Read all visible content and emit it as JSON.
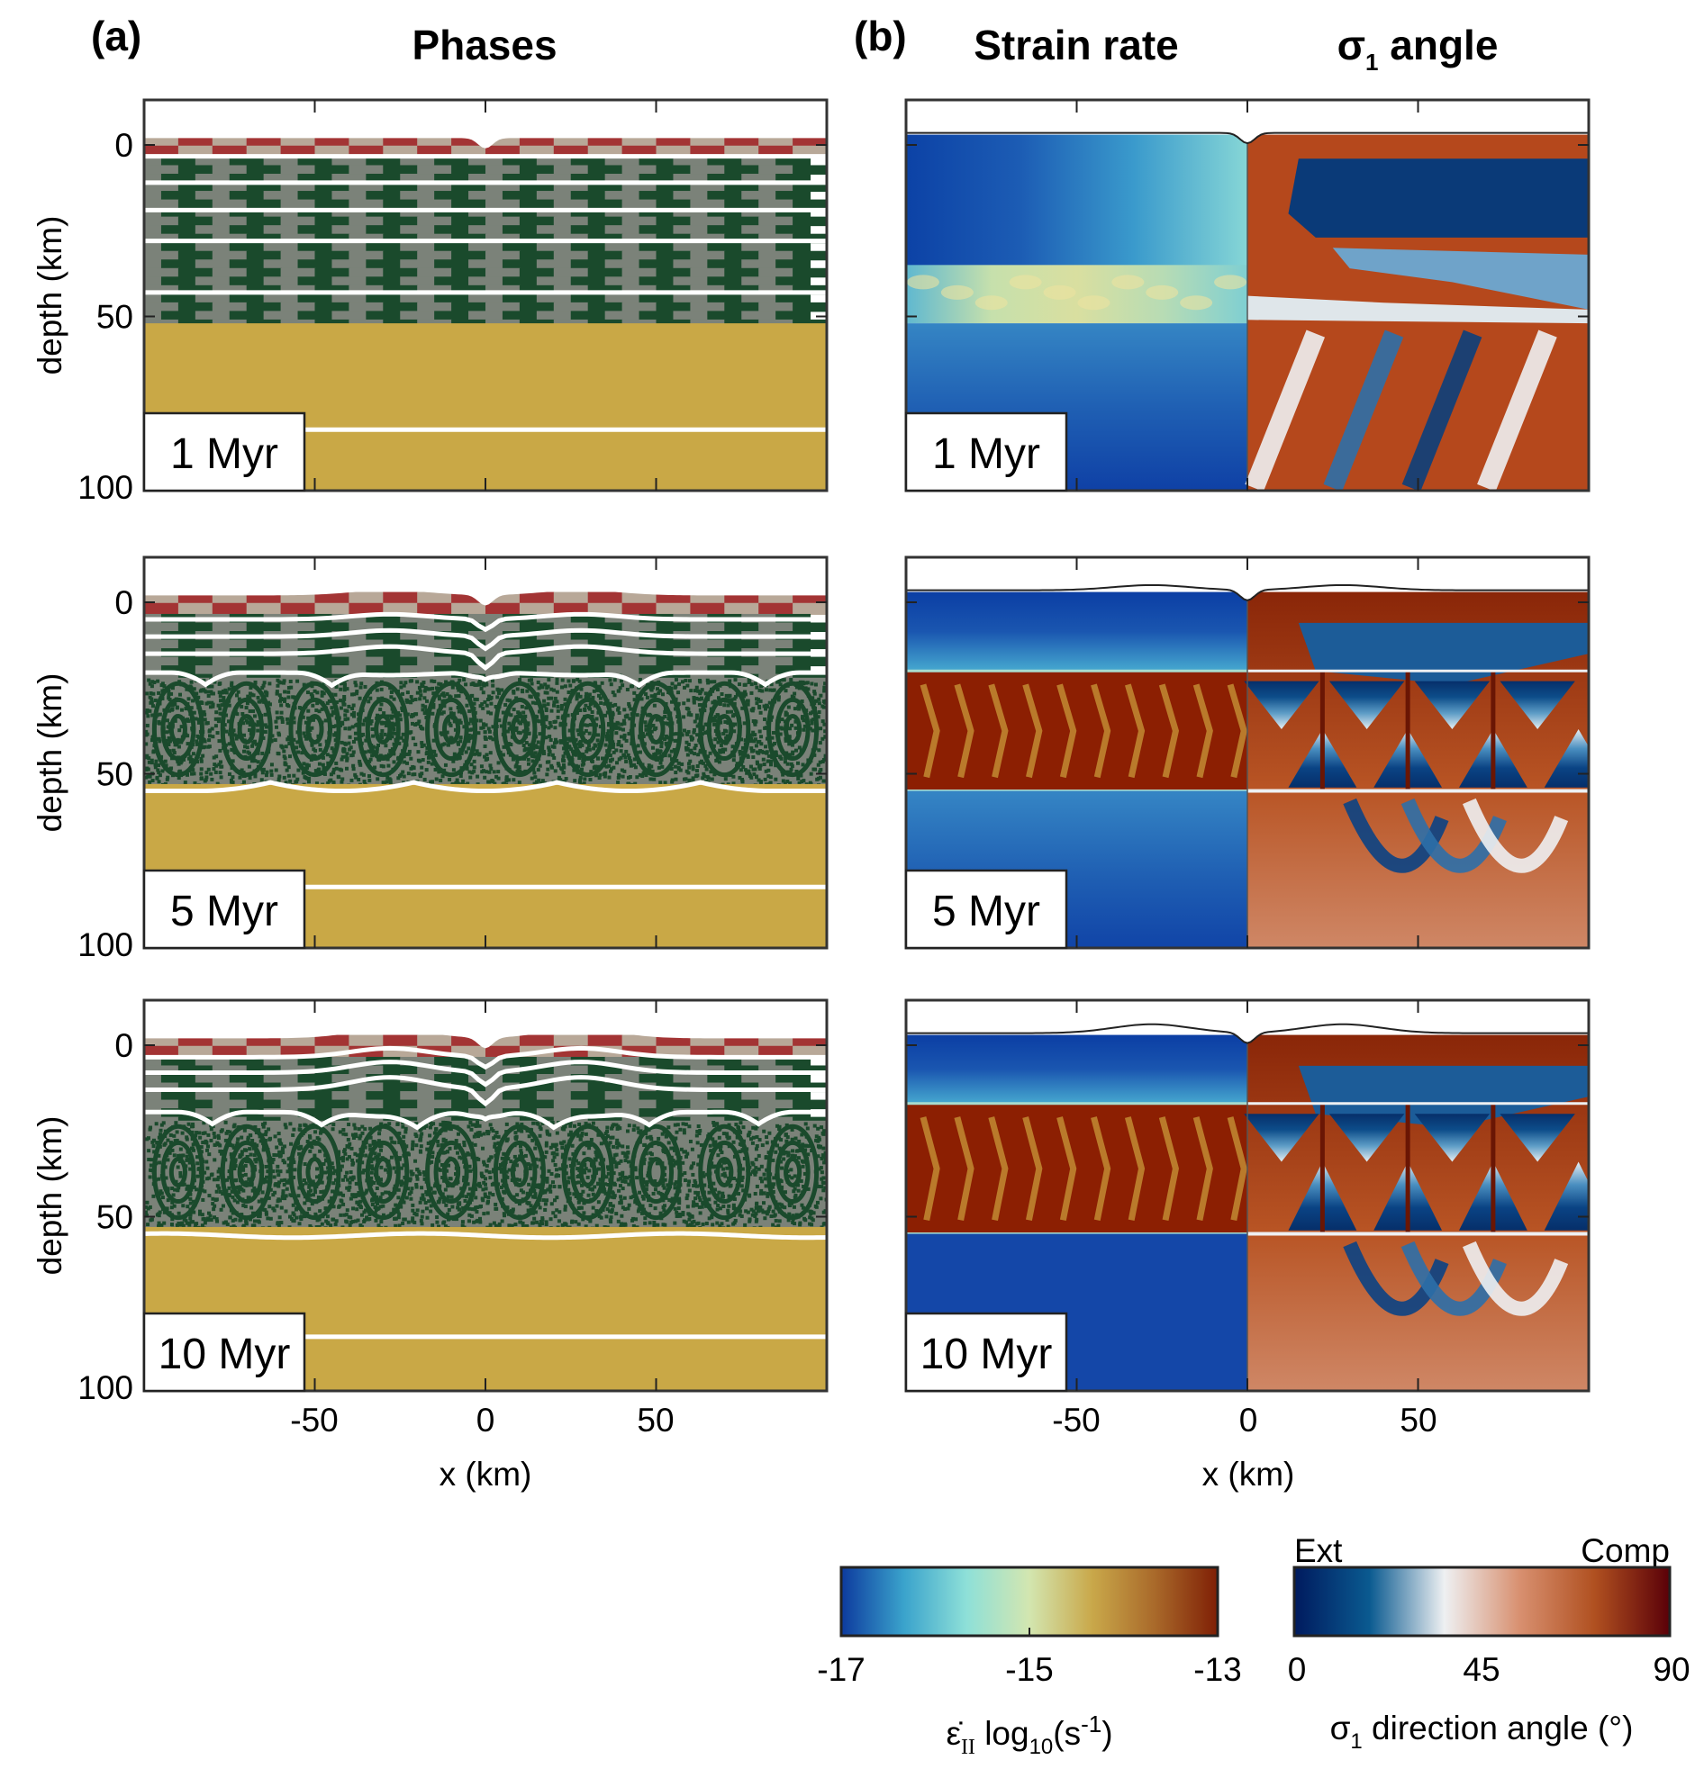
{
  "panel_a": {
    "label": "(a)",
    "title": "Phases"
  },
  "panel_b": {
    "label": "(b)",
    "title_left": "Strain rate",
    "title_right_sym": "σ",
    "title_right_sub": "1",
    "title_right_suffix": " angle"
  },
  "time_labels": [
    "1 Myr",
    "5 Myr",
    "10 Myr"
  ],
  "axes": {
    "ylabel": "depth (km)",
    "xlabel": "x (km)",
    "y_ticks": [
      "0",
      "50",
      "100"
    ],
    "x_ticks": [
      "-50",
      "0",
      "50"
    ]
  },
  "colorbar_strain": {
    "ticks": [
      "-17",
      "-15",
      "-13"
    ],
    "label_sym": "ε̇",
    "label_sub": "II",
    "label_log": " log",
    "label_log_sub": "10",
    "label_unit": "(s",
    "label_unit_sup": "-1",
    "label_close": ")",
    "colors": [
      "#0d3a9e",
      "#3aa3cc",
      "#8ee0d8",
      "#d3e6b0",
      "#c9a84a",
      "#a9692a",
      "#7f1f05"
    ]
  },
  "colorbar_sigma": {
    "ticks": [
      "0",
      "45",
      "90"
    ],
    "left_note": "Ext",
    "right_note": "Comp",
    "label_sym": "σ",
    "label_sub": "1",
    "label_rest": " direction angle (°)",
    "colors": [
      "#001a5e",
      "#0a5a90",
      "#eef0f2",
      "#d89070",
      "#b05020",
      "#5a0008"
    ]
  },
  "phase_colors": {
    "upper_crust_a": "#a33434",
    "upper_crust_b": "#b8a898",
    "crust_a": "#1a4a2c",
    "crust_b": "#7b8279",
    "mantle": "#c9a846"
  },
  "chart_data": {
    "type": "heatmap",
    "columns": [
      "Phases",
      "Strain rate",
      "σ1 angle"
    ],
    "rows": [
      "1 Myr",
      "5 Myr",
      "10 Myr"
    ],
    "xlabel": "x (km)",
    "ylabel": "depth (km)",
    "xlim": [
      -100,
      100
    ],
    "ylim": [
      100,
      -13
    ],
    "x_ticks": [
      -50,
      0,
      50
    ],
    "y_ticks": [
      0,
      50,
      100
    ],
    "strain_rate_colorbar": {
      "range": [
        -17,
        -13
      ],
      "ticks": [
        -17,
        -15,
        -13
      ],
      "label": "ε̇II log10(s-1)"
    },
    "sigma1_colorbar": {
      "range": [
        0,
        90
      ],
      "ticks": [
        0,
        45,
        90
      ],
      "label": "σ1 direction angle (°)",
      "ends": [
        "Ext",
        "Comp"
      ]
    }
  }
}
